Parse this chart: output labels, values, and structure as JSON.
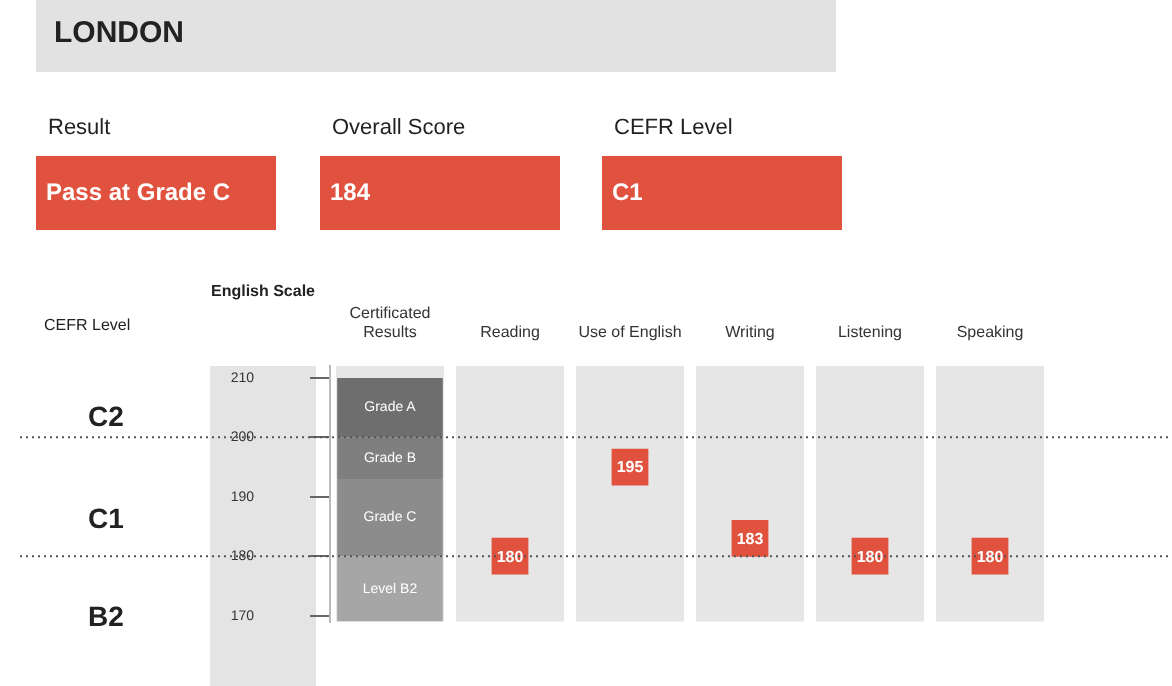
{
  "chart_data": [
    {
      "type": "other",
      "title": "LONDON",
      "annotations": [
        "Result",
        "Pass at Grade C",
        "Overall Score",
        "184",
        "CEFR Level",
        "C1"
      ]
    },
    {
      "type": "bar",
      "ylabel": "English Scale",
      "categories": [
        "Certificated Results",
        "Reading",
        "Use of English",
        "Writing",
        "Listening",
        "Speaking"
      ],
      "series": [
        {
          "name": "Level B2",
          "color": "#a6a6a6",
          "values": [
            11,
            null,
            null,
            null,
            null,
            null
          ],
          "base": [
            169,
            null,
            null,
            null,
            null,
            null
          ]
        },
        {
          "name": "Grade C",
          "color": "#8c8c8c",
          "values": [
            13,
            null,
            null,
            null,
            null,
            null
          ],
          "base": [
            180,
            null,
            null,
            null,
            null,
            null
          ]
        },
        {
          "name": "Grade B",
          "color": "#7f7f7f",
          "values": [
            7,
            null,
            null,
            null,
            null,
            null
          ],
          "base": [
            193,
            null,
            null,
            null,
            null,
            null
          ]
        },
        {
          "name": "Grade A",
          "color": "#6e6e6e",
          "values": [
            10,
            null,
            null,
            null,
            null,
            null
          ],
          "base": [
            200,
            null,
            null,
            null,
            null,
            null
          ]
        },
        {
          "type": "scatter",
          "color": "#e0523e",
          "x": [
            "Reading",
            "Use of English",
            "Writing",
            "Listening",
            "Speaking"
          ],
          "values": [
            180,
            195,
            183,
            180,
            180
          ],
          "value_labels": [
            "180",
            "195",
            "183",
            "180",
            "180"
          ]
        }
      ],
      "marker": "square",
      "ylim": [
        169,
        212
      ],
      "yticks": [
        170,
        180,
        190,
        200,
        210
      ],
      "ref_lines": [
        {
          "axis": "y",
          "value": 200,
          "line_style": "dotted"
        },
        {
          "axis": "y",
          "value": 180,
          "line_style": "dotted"
        }
      ],
      "annotations": [
        "CEFR Level",
        "C2",
        "C1",
        "B2"
      ],
      "grid": "x",
      "legend": false
    }
  ]
}
